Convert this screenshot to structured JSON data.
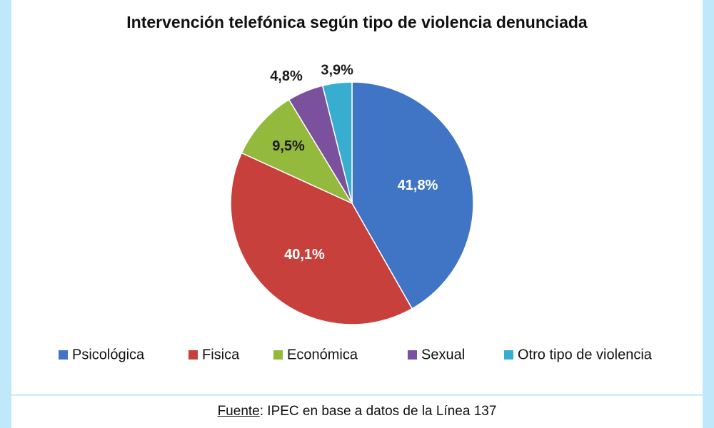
{
  "chart_data": {
    "type": "pie",
    "title": "Intervención telefónica según tipo de violencia denunciada",
    "categories": [
      "Psicológica",
      "Fisica",
      "Económica",
      "Sexual",
      "Otro tipo de violencia"
    ],
    "values": [
      41.8,
      40.1,
      9.5,
      4.8,
      3.9
    ],
    "value_labels": [
      "41,8%",
      "40,1%",
      "9,5%",
      "4,8%",
      "3,9%"
    ],
    "colors": [
      "#4074c4",
      "#c8403c",
      "#93b93d",
      "#7b519e",
      "#37add0"
    ],
    "legend_position": "bottom"
  },
  "source": {
    "label": "Fuente",
    "text": ": IPEC en base a datos de la Línea 137"
  }
}
